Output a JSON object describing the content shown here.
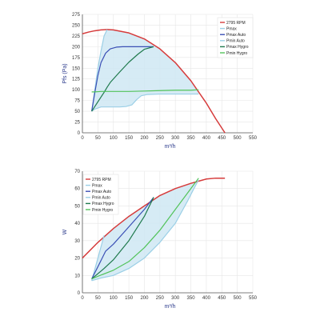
{
  "chart_data": [
    {
      "type": "line",
      "xlabel": "m³/h",
      "ylabel": "Pfs (Pa)",
      "xlim": [
        0,
        550
      ],
      "ylim": [
        0,
        275
      ],
      "x_ticks": [
        "0",
        "50",
        "100",
        "150",
        "200",
        "250",
        "300",
        "350",
        "400",
        "450",
        "500",
        "550"
      ],
      "y_ticks": [
        "0",
        "25",
        "50",
        "75",
        "100",
        "125",
        "150",
        "175",
        "200",
        "225",
        "250",
        "275"
      ],
      "grid": true,
      "legend_position": "top-right",
      "legend": [
        "2795 RPM",
        "Pmax",
        "Pmax Auto",
        "Pmin Auto",
        "Pmax Hygro",
        "Pmin Hygro"
      ],
      "fill_region": {
        "color": "#cfe8f3",
        "edge": "#8cc6de"
      },
      "series": [
        {
          "name": "2795 RPM",
          "color": "#d63b3b",
          "x": [
            0,
            20,
            40,
            60,
            80,
            100,
            150,
            200,
            250,
            300,
            350,
            400,
            430,
            460
          ],
          "y": [
            230,
            234,
            237,
            239,
            240,
            239,
            232,
            218,
            195,
            163,
            121,
            69,
            33,
            0
          ]
        },
        {
          "name": "Pmax",
          "color": "#9bcfe6",
          "x": [
            30,
            40,
            50,
            60,
            70,
            80
          ],
          "y": [
            50,
            100,
            150,
            190,
            225,
            240
          ]
        },
        {
          "name": "Pmax Auto",
          "color": "#3a4fb5",
          "x": [
            30,
            40,
            50,
            60,
            75,
            90,
            110,
            130,
            160,
            200,
            230
          ],
          "y": [
            50,
            93,
            133,
            163,
            185,
            195,
            199,
            200,
            200,
            200,
            200
          ]
        },
        {
          "name": "Pmin Auto",
          "color": "#9bcfe6",
          "x": [
            30,
            40,
            60,
            80,
            100,
            120,
            140,
            160,
            175,
            190,
            210,
            250,
            300,
            375
          ],
          "y": [
            50,
            55,
            60,
            60,
            60,
            60,
            61,
            65,
            77,
            86,
            89,
            90,
            90,
            90
          ]
        },
        {
          "name": "Pmax Hygro",
          "color": "#1f7a4d",
          "x": [
            30,
            40,
            50,
            60,
            70,
            80,
            90,
            120,
            150,
            180,
            200,
            230
          ],
          "y": [
            50,
            61,
            72,
            83,
            94,
            106,
            117,
            141,
            164,
            183,
            194,
            200
          ]
        },
        {
          "name": "Pmin Hygro",
          "color": "#52c35a",
          "x": [
            30,
            40,
            60,
            100,
            150,
            200,
            250,
            300,
            350,
            375
          ],
          "y": [
            95,
            95,
            96,
            96,
            96,
            97,
            98,
            99,
            99,
            100
          ]
        }
      ]
    },
    {
      "type": "line",
      "xlabel": "m³/h",
      "ylabel": "W",
      "xlim": [
        0,
        550
      ],
      "ylim": [
        0,
        70
      ],
      "x_ticks": [
        "0",
        "50",
        "100",
        "150",
        "200",
        "250",
        "300",
        "350",
        "400",
        "450",
        "500",
        "550"
      ],
      "y_ticks": [
        "0",
        "10",
        "20",
        "30",
        "40",
        "50",
        "60",
        "70"
      ],
      "grid": true,
      "legend_position": "top-left",
      "legend": [
        "2795 RPM",
        "Pmax",
        "Pmax Auto",
        "Pmin Auto",
        "Pmax Hygro",
        "Pmin Hygro"
      ],
      "fill_region": {
        "color": "#cfe8f3",
        "edge": "#8cc6de"
      },
      "series": [
        {
          "name": "2795 RPM",
          "color": "#d63b3b",
          "x": [
            0,
            50,
            100,
            150,
            200,
            250,
            300,
            350,
            400,
            430,
            460
          ],
          "y": [
            20,
            29,
            37,
            44,
            50,
            56,
            60,
            63,
            65.5,
            66,
            66
          ]
        },
        {
          "name": "Pmax",
          "color": "#9bcfe6",
          "x": [
            30,
            50,
            70
          ],
          "y": [
            7,
            20,
            33
          ]
        },
        {
          "name": "Pmax Auto",
          "color": "#3a4fb5",
          "x": [
            30,
            50,
            75,
            100,
            125,
            150,
            175,
            200,
            230
          ],
          "y": [
            8,
            15,
            24,
            28,
            33,
            38,
            43,
            48,
            55
          ]
        },
        {
          "name": "Pmin Auto",
          "color": "#9bcfe6",
          "x": [
            30,
            60,
            100,
            150,
            200,
            250,
            300,
            340,
            360,
            375
          ],
          "y": [
            7,
            8.5,
            10,
            14,
            20,
            29,
            40,
            53,
            60,
            65
          ]
        },
        {
          "name": "Pmax Hygro",
          "color": "#1f7a4d",
          "x": [
            30,
            70,
            100,
            150,
            200,
            230
          ],
          "y": [
            8,
            14,
            19,
            30,
            44,
            55
          ]
        },
        {
          "name": "Pmin Hygro",
          "color": "#52c35a",
          "x": [
            30,
            50,
            100,
            150,
            200,
            250,
            300,
            350,
            375
          ],
          "y": [
            8,
            9.5,
            13,
            18,
            26,
            36,
            48,
            60,
            66
          ]
        }
      ]
    }
  ]
}
